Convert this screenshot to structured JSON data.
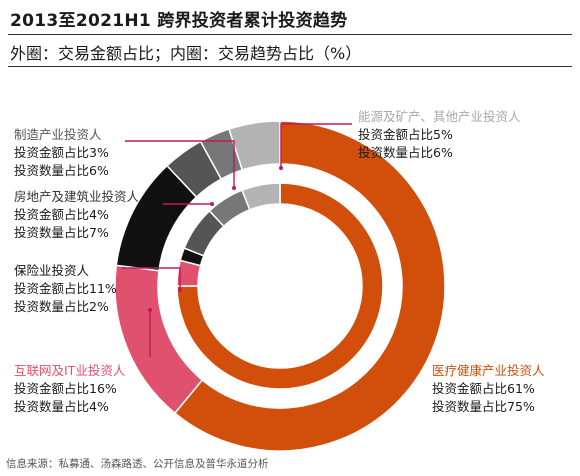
{
  "title": "2013至2021H1 跨界投资者累计投资趋势",
  "subtitle": "外圈：交易金额占比；内圈：交易趋势占比（%）",
  "source": "信息来源：私募通、汤森路透、公开信息及普华永道分析",
  "chart_data": {
    "type": "pie",
    "subtype": "nested-donut",
    "title": "2013至2021H1 跨界投资者累计投资趋势",
    "subtitle": "外圈：交易金额占比；内圈：交易趋势占比（%）",
    "categories": [
      "医疗健康产业投资人",
      "互联网及IT业投资人",
      "保险业投资人",
      "房地产及建筑业投资人",
      "制造产业投资人",
      "能源及矿产、其他产业投资人"
    ],
    "series": [
      {
        "ring": "outer",
        "values": [
          61,
          16,
          11,
          4,
          3,
          5
        ]
      },
      {
        "ring": "inner",
        "values": [
          75,
          4,
          2,
          7,
          6,
          6
        ]
      }
    ],
    "colors": [
      "#d24e0b",
      "#e0516e",
      "#111111",
      "#555555",
      "#777777",
      "#b3b3b3"
    ]
  },
  "labels": [
    {
      "name": "医疗健康产业投资人",
      "amount": "投资金额占比61%",
      "count": "投资数量占比75%",
      "color": "#d24e0b"
    },
    {
      "name": "互联网及IT业投资人",
      "amount": "投资金额占比16%",
      "count": "投资数量占比4%",
      "color": "#e0516e"
    },
    {
      "name": "保险业投资人",
      "amount": "投资金额占比11%",
      "count": "投资数量占比2%",
      "color": "#111111"
    },
    {
      "name": "房地产及建筑业投资人",
      "amount": "投资金额占比4%",
      "count": "投资数量占比7%",
      "color": "#333333"
    },
    {
      "name": "制造产业投资人",
      "amount": "投资金额占比3%",
      "count": "投资数量占比6%",
      "color": "#555555"
    },
    {
      "name": "能源及矿产、其他产业投资人",
      "amount": "投资金额占比5%",
      "count": "投资数量占比6%",
      "color": "#a8a8a8"
    }
  ],
  "leader_color": "#c2185b"
}
